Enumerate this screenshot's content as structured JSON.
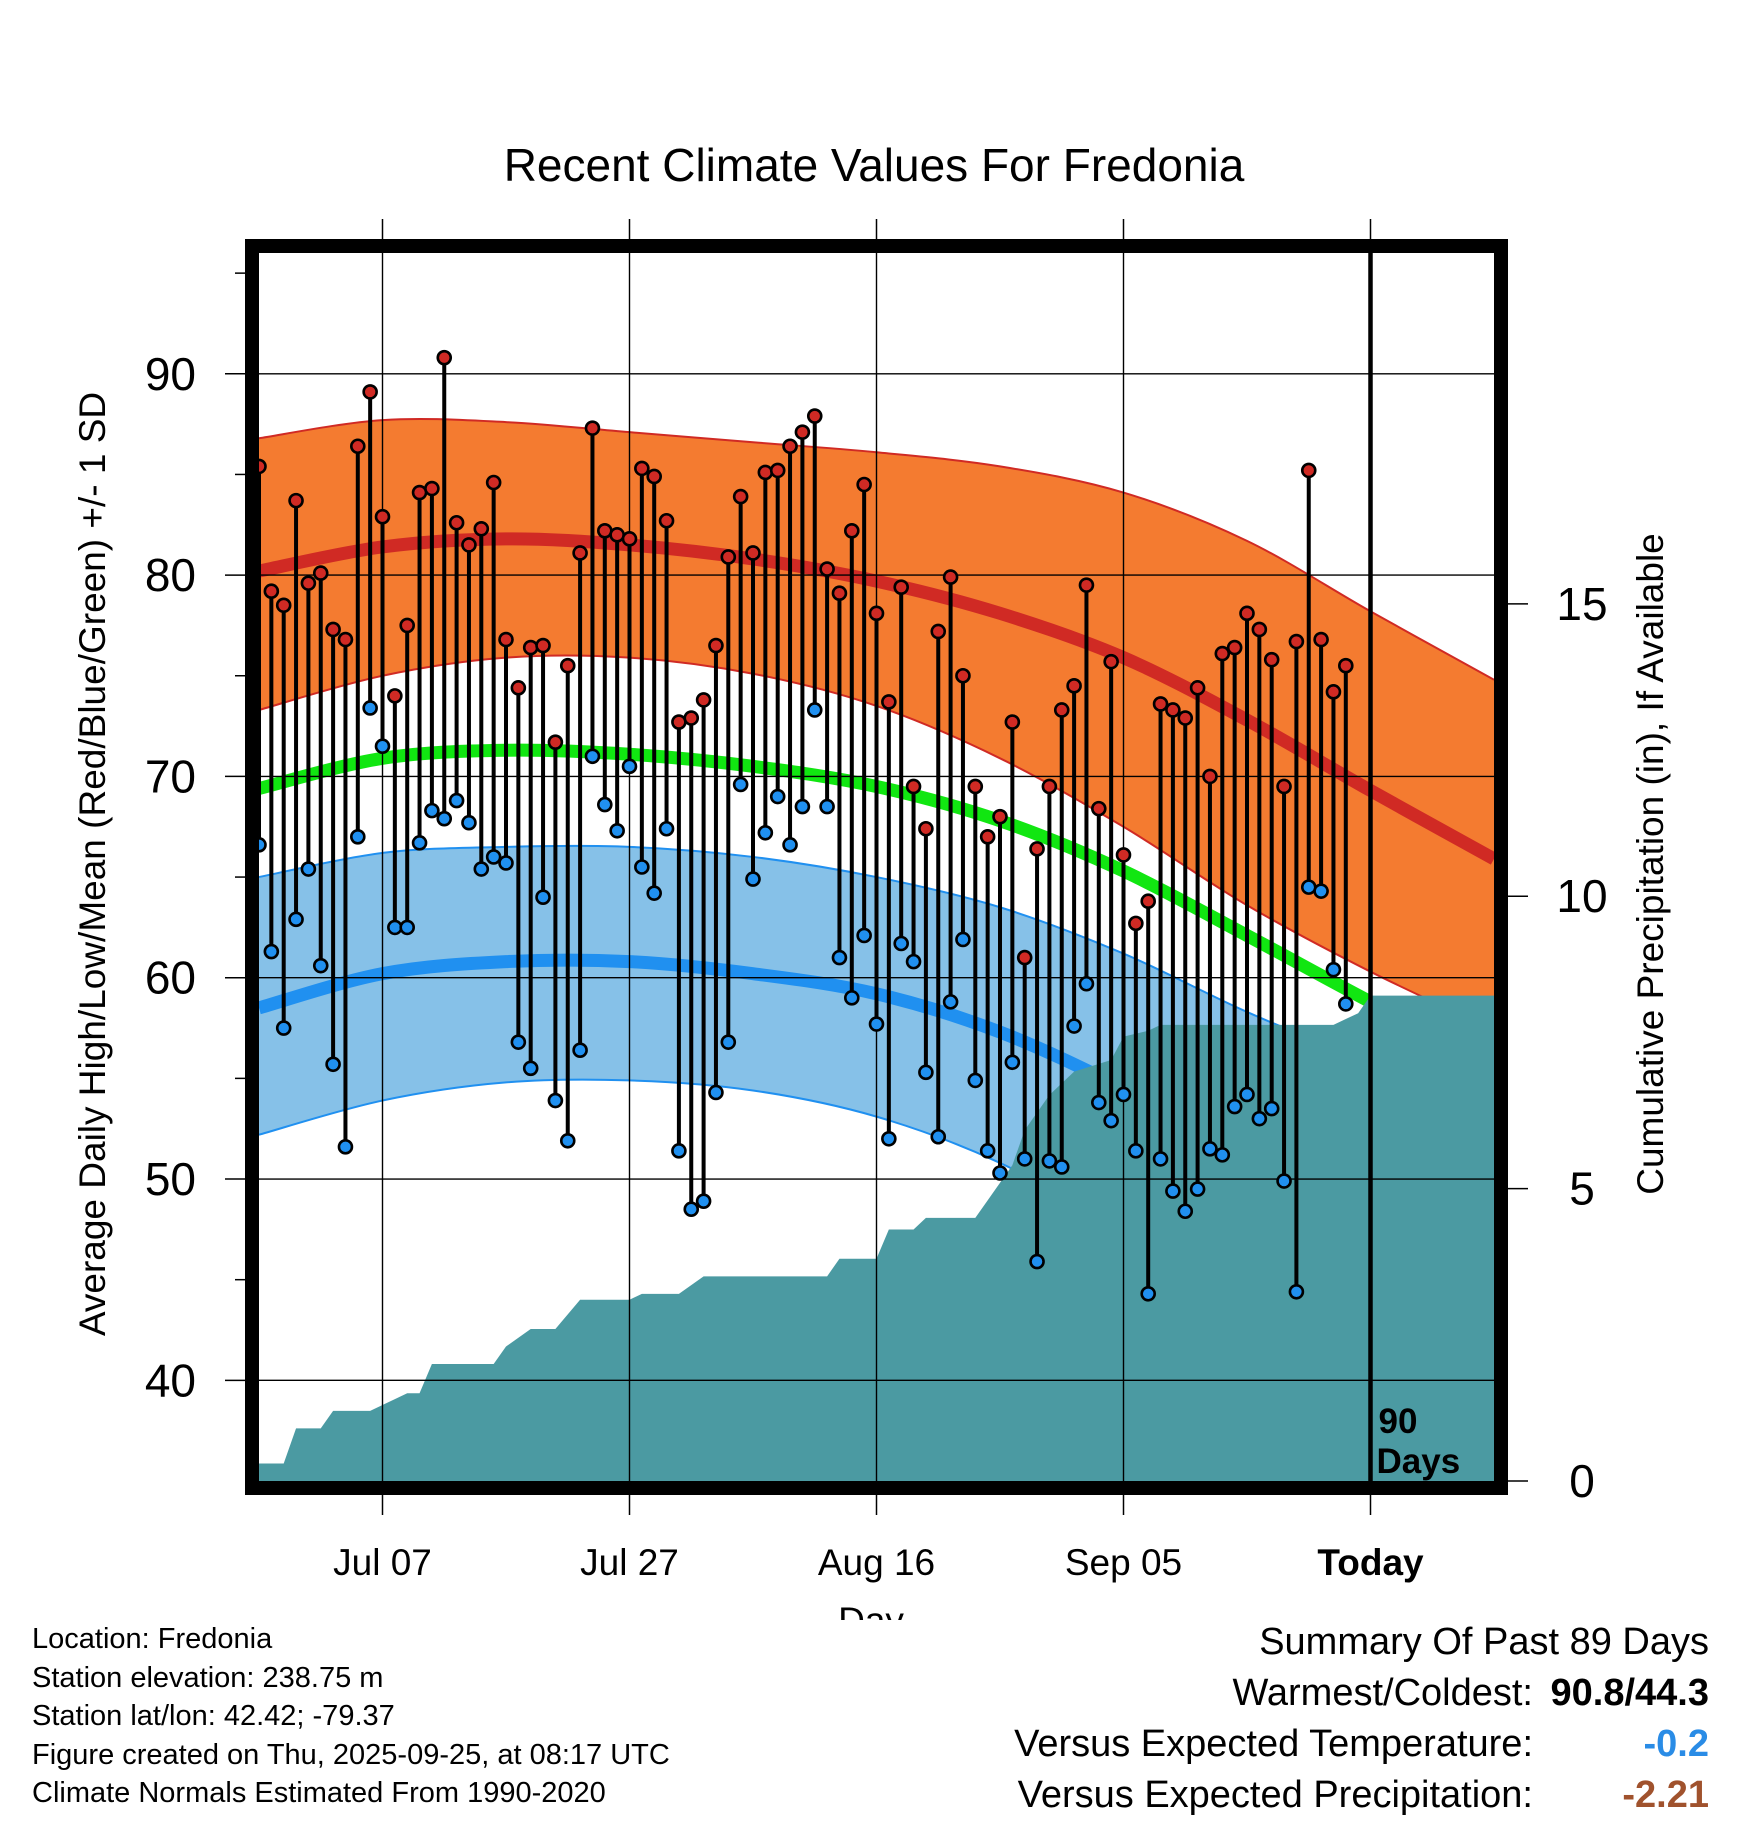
{
  "colors": {
    "high_band": "#f47b30",
    "high_band_edge": "#d02a24",
    "high_mean": "#d02a24",
    "low_band": "#86c1e8",
    "low_band_edge": "#2090f0",
    "low_mean": "#2090f0",
    "mean": "#11e611",
    "precip": "#4b9aa2",
    "high_dot": "#d02a24",
    "low_dot": "#2090f0",
    "temp_anomaly": "#2a8ce6",
    "precip_anomaly": "#a0522d"
  },
  "chart_data": {
    "type": "line",
    "title": "Recent Climate Values For Fredonia",
    "xlabel": "Day",
    "ylabel": "Average Daily High/Low/Mean (Red/Blue/Green) +/- 1 SD",
    "y2label": "Cumulative Precipitation (in), If Available",
    "xlim": [
      0,
      100
    ],
    "ylim": [
      35,
      96
    ],
    "y2lim": [
      0,
      21
    ],
    "grid": true,
    "y_ticks": [
      40,
      50,
      60,
      70,
      80,
      90
    ],
    "y2_ticks": [
      0,
      5,
      10,
      15
    ],
    "x_ticks": [
      {
        "day": 10,
        "label": "Jul 07"
      },
      {
        "day": 30,
        "label": "Jul 27"
      },
      {
        "day": 50,
        "label": "Aug 16"
      },
      {
        "day": 70,
        "label": "Sep 05"
      },
      {
        "day": 90,
        "label": "Today"
      }
    ],
    "today_day": 90,
    "today_label": [
      "90",
      "Days"
    ],
    "normals": {
      "days": [
        0,
        10,
        20,
        30,
        40,
        50,
        60,
        70,
        80,
        90,
        100
      ],
      "high_mean": [
        80.2,
        81.4,
        81.8,
        81.5,
        80.8,
        79.7,
        78.1,
        75.9,
        72.8,
        69.3,
        65.9
      ],
      "high_sd_upper": [
        86.8,
        87.7,
        87.6,
        87.1,
        86.6,
        86.1,
        85.4,
        84.1,
        81.7,
        78.2,
        74.8
      ],
      "high_sd_lower": [
        73.3,
        75.0,
        75.9,
        75.9,
        75.1,
        73.5,
        70.9,
        67.5,
        63.6,
        60.3,
        57.4
      ],
      "mean": [
        69.4,
        70.9,
        71.3,
        71.1,
        70.5,
        69.5,
        67.8,
        65.3,
        62.1,
        58.8,
        55.7
      ],
      "low_mean": [
        58.5,
        60.2,
        60.8,
        60.8,
        60.2,
        59.2,
        57.3,
        54.5,
        51.2,
        48.3,
        45.5
      ],
      "low_sd_upper": [
        65.0,
        66.2,
        66.5,
        66.5,
        66.0,
        65.0,
        63.5,
        61.2,
        58.3,
        55.8,
        53.6
      ],
      "low_sd_lower": [
        52.2,
        53.9,
        54.8,
        54.9,
        54.4,
        53.1,
        50.8,
        47.4,
        43.9,
        40.8,
        38.2
      ]
    },
    "series": [
      {
        "name": "Daily High",
        "values": [
          85.4,
          79.2,
          78.5,
          83.7,
          79.6,
          80.1,
          77.3,
          76.8,
          86.4,
          89.1,
          82.9,
          74.0,
          77.5,
          84.1,
          84.3,
          90.8,
          82.6,
          81.5,
          82.3,
          84.6,
          76.8,
          74.4,
          76.4,
          76.5,
          71.7,
          75.5,
          81.1,
          87.3,
          82.2,
          82.0,
          81.8,
          85.3,
          84.9,
          82.7,
          72.7,
          72.9,
          73.8,
          76.5,
          80.9,
          83.9,
          81.1,
          85.1,
          85.2,
          86.4,
          87.1,
          87.9,
          80.3,
          79.1,
          82.2,
          84.5,
          78.1,
          73.7,
          79.4,
          69.5,
          67.4,
          77.2,
          79.9,
          75.0,
          69.5,
          67.0,
          68.0,
          72.7,
          61.0,
          66.4,
          69.5,
          73.3,
          74.5,
          79.5,
          68.4,
          75.7,
          66.1,
          62.7,
          63.8,
          73.6,
          73.3,
          72.9,
          74.4,
          70.0,
          76.1,
          76.4,
          78.1,
          77.3,
          75.8,
          69.5,
          76.7,
          85.2,
          76.8,
          74.2,
          75.5
        ]
      },
      {
        "name": "Daily Low",
        "values": [
          66.6,
          61.3,
          57.5,
          62.9,
          65.4,
          60.6,
          55.7,
          51.6,
          67.0,
          73.4,
          71.5,
          62.5,
          62.5,
          66.7,
          68.3,
          67.9,
          68.8,
          67.7,
          65.4,
          66.0,
          65.7,
          56.8,
          55.5,
          64.0,
          53.9,
          51.9,
          56.4,
          71.0,
          68.6,
          67.3,
          70.5,
          65.5,
          64.2,
          67.4,
          51.4,
          48.5,
          48.9,
          54.3,
          56.8,
          69.6,
          64.9,
          67.2,
          69.0,
          66.6,
          68.5,
          73.3,
          68.5,
          61.0,
          59.0,
          62.1,
          57.7,
          52.0,
          61.7,
          60.8,
          55.3,
          52.1,
          58.8,
          61.9,
          54.9,
          51.4,
          50.3,
          55.8,
          51.0,
          45.9,
          50.9,
          50.6,
          57.6,
          59.7,
          53.8,
          52.9,
          54.2,
          51.4,
          44.3,
          51.0,
          49.4,
          48.4,
          49.5,
          51.5,
          51.2,
          53.6,
          54.2,
          53.0,
          53.5,
          49.9,
          44.4,
          64.5,
          64.3,
          60.4,
          58.7
        ]
      },
      {
        "name": "Cumulative Precipitation",
        "x": [
          0,
          2,
          3,
          5,
          6,
          9,
          10,
          12,
          13,
          14,
          16,
          17,
          19,
          20,
          22,
          24,
          26,
          30,
          31,
          34,
          36,
          46,
          47,
          50,
          51,
          53,
          54,
          58,
          59,
          61,
          62,
          64,
          66,
          69,
          70,
          72,
          73,
          87,
          88,
          89,
          90,
          95,
          99
        ],
        "values": [
          0.3,
          0.3,
          0.9,
          0.9,
          1.2,
          1.2,
          1.3,
          1.5,
          1.5,
          2.0,
          2.0,
          2.0,
          2.0,
          2.3,
          2.6,
          2.6,
          3.1,
          3.1,
          3.2,
          3.2,
          3.5,
          3.5,
          3.8,
          3.8,
          4.3,
          4.3,
          4.5,
          4.5,
          4.8,
          5.4,
          6.0,
          6.6,
          7.0,
          7.2,
          7.6,
          7.7,
          7.8,
          7.8,
          7.9,
          8.0,
          8.3,
          8.3,
          8.3
        ]
      }
    ]
  },
  "info": [
    "Location: Fredonia",
    "Station elevation: 238.75 m",
    "Station lat/lon: 42.42; -79.37",
    "Figure created on Thu, 2025-09-25, at 08:17 UTC",
    "Climate Normals Estimated From 1990-2020"
  ],
  "summary": {
    "title": "Summary Of Past 89 Days",
    "warmest_coldest_label": "Warmest/Coldest:",
    "warmest": "90.8",
    "separator": "/",
    "coldest": "44.3",
    "temp_label": "Versus Expected Temperature:",
    "temp_value": "-0.2",
    "precip_label": "Versus Expected Precipitation:",
    "precip_value": "-2.21"
  }
}
